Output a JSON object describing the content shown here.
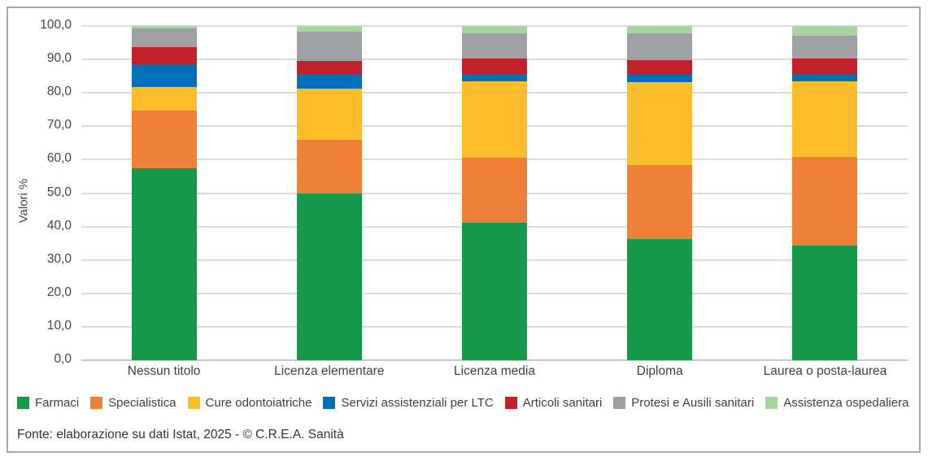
{
  "footer": {
    "source": "Fonte: elaborazione su dati Istat, 2025 - © C.R.E.A. Sanità"
  },
  "chart_data": {
    "type": "bar",
    "stacked": true,
    "ylabel": "Valori %",
    "ylim": [
      0,
      100
    ],
    "ytick_step": 10,
    "ytick_labels": [
      "0,0",
      "10,0",
      "20,0",
      "30,0",
      "40,0",
      "50,0",
      "60,0",
      "70,0",
      "80,0",
      "90,0",
      "100,0"
    ],
    "grid": true,
    "legend_position": "bottom",
    "categories": [
      "Nessun titolo",
      "Licenza elementare",
      "Licenza media",
      "Diploma",
      "Laurea o posta-laurea"
    ],
    "series": [
      {
        "name": "Farmaci",
        "color": "#17994A",
        "values": [
          57.4,
          49.8,
          41.2,
          36.3,
          34.4
        ]
      },
      {
        "name": "Specialistica",
        "color": "#EF8038",
        "values": [
          17.2,
          16.2,
          19.4,
          22.0,
          26.4
        ]
      },
      {
        "name": "Cure odontoiatriche",
        "color": "#FDBE2C",
        "values": [
          7.2,
          15.3,
          22.9,
          25.0,
          22.7
        ]
      },
      {
        "name": "Servizi assistenziali per LTC",
        "color": "#0071B9",
        "values": [
          6.5,
          4.4,
          2.2,
          2.0,
          2.2
        ]
      },
      {
        "name": "Articoli sanitari",
        "color": "#C2202A",
        "values": [
          5.3,
          3.9,
          4.5,
          4.6,
          4.5
        ]
      },
      {
        "name": "Protesi e Ausili sanitari",
        "color": "#9EA0A3",
        "values": [
          5.8,
          8.7,
          7.7,
          7.9,
          6.9
        ]
      },
      {
        "name": "Assistenza ospedaliera",
        "color": "#A9D3A2",
        "values": [
          0.6,
          1.7,
          2.1,
          2.2,
          2.9
        ]
      }
    ]
  }
}
